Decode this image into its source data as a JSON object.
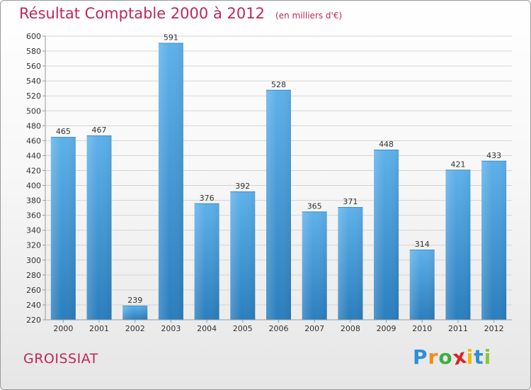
{
  "header": {
    "title": "Résultat Comptable 2000 à 2012",
    "unit_note": "(en milliers d'€)"
  },
  "footer": {
    "commune": "GROISSIAT",
    "brand_letters": [
      "P",
      "r",
      "o",
      "x",
      "i",
      "t",
      "i"
    ],
    "brand_colors": [
      "#2e8ed6",
      "#f28c1b",
      "#3fae3f",
      "#d8232a",
      "#f2b705",
      "#2e8ed6",
      "#8cc63f"
    ]
  },
  "colors": {
    "accent": "#c0265d",
    "bar_top": "#5eb1ea",
    "bar_bottom": "#2a7ebd"
  },
  "chart_data": {
    "type": "bar",
    "title": "Résultat Comptable 2000 à 2012",
    "subtitle": "(en milliers d'€)",
    "xlabel": "",
    "ylabel": "",
    "categories": [
      "2000",
      "2001",
      "2002",
      "2003",
      "2004",
      "2005",
      "2006",
      "2007",
      "2008",
      "2009",
      "2010",
      "2011",
      "2012"
    ],
    "values": [
      465,
      467,
      239,
      591,
      376,
      392,
      528,
      365,
      371,
      448,
      314,
      421,
      433
    ],
    "ylim": [
      220,
      600
    ],
    "y_ticks": [
      220,
      240,
      260,
      280,
      300,
      320,
      340,
      360,
      380,
      400,
      420,
      440,
      460,
      480,
      500,
      520,
      540,
      560,
      580,
      600
    ],
    "grid": true,
    "data_labels": true
  }
}
